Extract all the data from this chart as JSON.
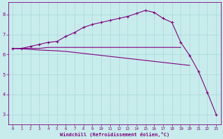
{
  "xlabel": "Windchill (Refroidissement éolien,°C)",
  "bg_color": "#c8ecec",
  "line_color": "#800080",
  "grid_color": "#a8d8d8",
  "axis_color": "#800080",
  "text_color": "#800080",
  "xlim": [
    -0.5,
    23.5
  ],
  "ylim": [
    2.5,
    8.6
  ],
  "xticks": [
    0,
    1,
    2,
    3,
    4,
    5,
    6,
    7,
    8,
    9,
    10,
    11,
    12,
    13,
    14,
    15,
    16,
    17,
    18,
    19,
    20,
    21,
    22,
    23
  ],
  "yticks": [
    3,
    4,
    5,
    6,
    7,
    8
  ],
  "curve1_x": [
    0,
    1,
    2,
    3,
    4,
    5,
    6,
    7,
    8,
    9,
    10,
    11,
    12,
    13,
    14,
    15,
    16,
    17,
    18,
    19,
    20,
    21,
    22,
    23
  ],
  "curve1_y": [
    6.3,
    6.3,
    6.4,
    6.5,
    6.6,
    6.65,
    6.9,
    7.1,
    7.35,
    7.5,
    7.6,
    7.7,
    7.8,
    7.9,
    8.05,
    8.2,
    8.1,
    7.8,
    7.6,
    6.6,
    5.95,
    5.15,
    4.1,
    3.0
  ],
  "curve2_x": [
    0,
    1,
    2,
    3,
    4,
    5,
    6,
    7,
    8,
    9,
    10,
    11,
    12,
    13,
    14,
    15,
    16,
    17,
    18,
    19
  ],
  "curve2_y": [
    6.3,
    6.3,
    6.3,
    6.3,
    6.35,
    6.35,
    6.35,
    6.35,
    6.35,
    6.35,
    6.35,
    6.35,
    6.35,
    6.35,
    6.35,
    6.35,
    6.35,
    6.35,
    6.35,
    6.35
  ],
  "curve3_x": [
    0,
    1,
    2,
    3,
    4,
    5,
    6,
    7,
    8,
    9,
    10,
    11,
    12,
    13,
    14,
    15,
    16,
    17,
    18,
    19,
    20
  ],
  "curve3_y": [
    6.3,
    6.28,
    6.25,
    6.22,
    6.2,
    6.18,
    6.15,
    6.1,
    6.05,
    6.0,
    5.95,
    5.9,
    5.85,
    5.8,
    5.75,
    5.7,
    5.65,
    5.6,
    5.55,
    5.5,
    5.45
  ],
  "figsize": [
    3.2,
    2.0
  ],
  "dpi": 100
}
